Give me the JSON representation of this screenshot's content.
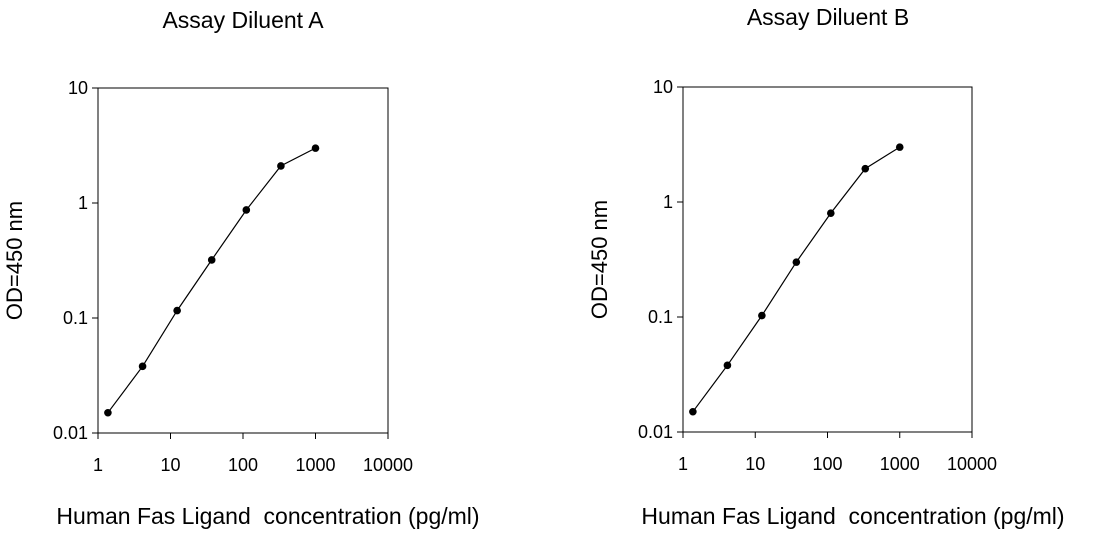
{
  "chart_data": [
    {
      "type": "line",
      "title": "Assay Diluent A",
      "xlabel": "Human Fas Ligand  concentration (pg/ml)",
      "ylabel": "OD=450 nm",
      "xscale": "log",
      "yscale": "log",
      "xlim": [
        1,
        10000
      ],
      "ylim": [
        0.01,
        10
      ],
      "xticks": [
        "1",
        "10",
        "100",
        "1000",
        "10000"
      ],
      "yticks": [
        "0.01",
        "0.1",
        "1",
        "10"
      ],
      "grid": false,
      "x": [
        1.37,
        4.12,
        12.35,
        37.04,
        111.1,
        333.3,
        1000
      ],
      "y": [
        0.015,
        0.038,
        0.116,
        0.32,
        0.87,
        2.1,
        3.0
      ]
    },
    {
      "type": "line",
      "title": "Assay Diluent B",
      "xlabel": "Human Fas Ligand  concentration (pg/ml)",
      "ylabel": "OD=450 nm",
      "xscale": "log",
      "yscale": "log",
      "xlim": [
        1,
        10000
      ],
      "ylim": [
        0.01,
        10
      ],
      "xticks": [
        "1",
        "10",
        "100",
        "1000",
        "10000"
      ],
      "yticks": [
        "0.01",
        "0.1",
        "1",
        "10"
      ],
      "grid": false,
      "x": [
        1.37,
        4.12,
        12.35,
        37.04,
        111.1,
        333.3,
        1000
      ],
      "y": [
        0.015,
        0.038,
        0.103,
        0.3,
        0.8,
        1.95,
        3.0
      ]
    }
  ]
}
